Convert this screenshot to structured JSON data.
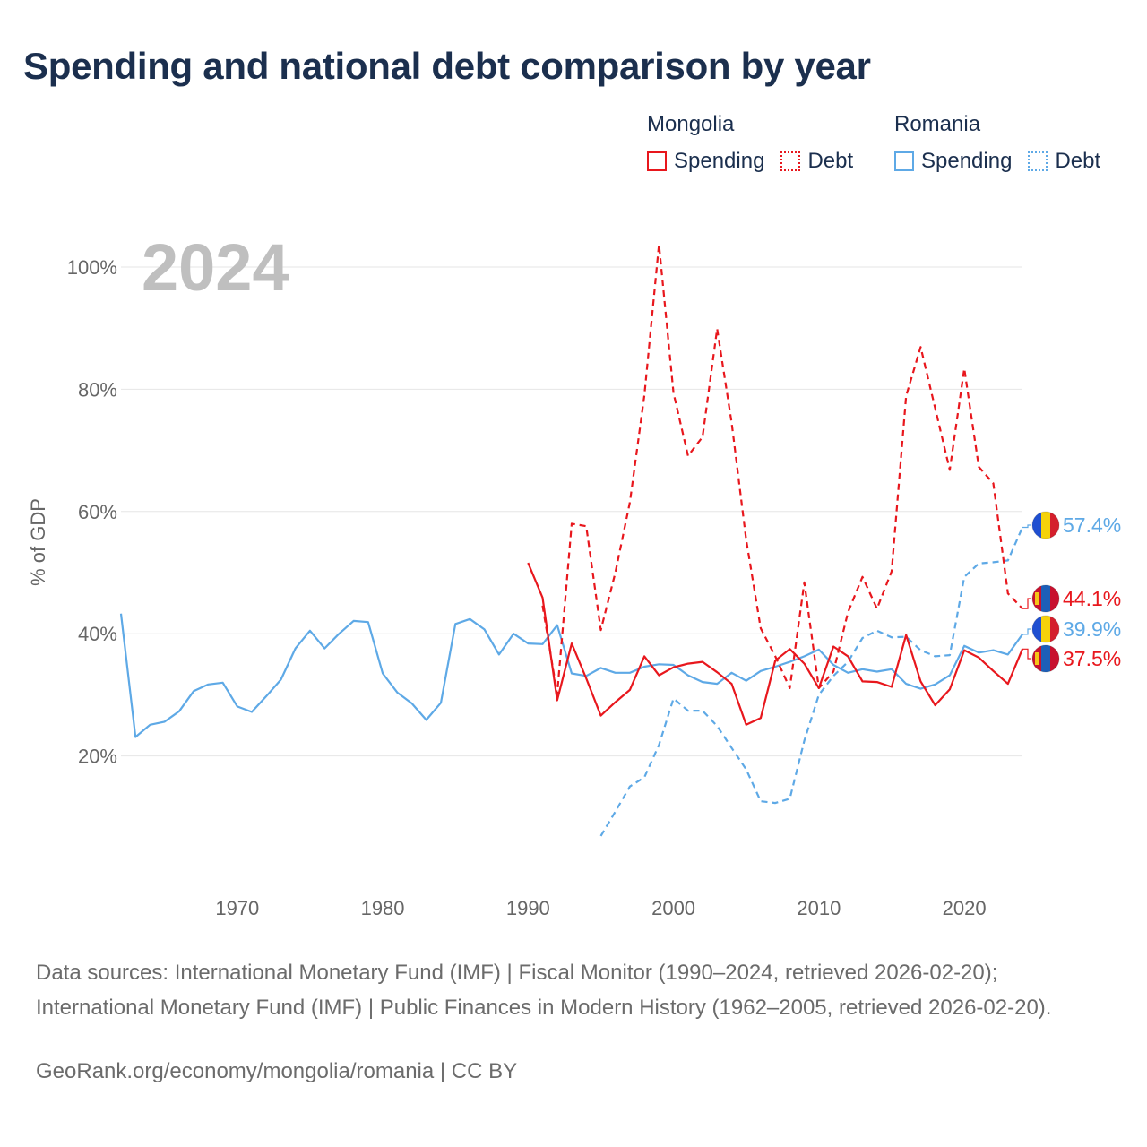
{
  "title": "Spending and national debt comparison by year",
  "legend": {
    "groups": [
      {
        "name": "Mongolia",
        "color": "#e8171d",
        "items": [
          {
            "label": "Spending",
            "style": "solid"
          },
          {
            "label": "Debt",
            "style": "dotted"
          }
        ]
      },
      {
        "name": "Romania",
        "color": "#5ea9e6",
        "items": [
          {
            "label": "Spending",
            "style": "solid"
          },
          {
            "label": "Debt",
            "style": "dotted"
          }
        ]
      }
    ]
  },
  "year_label": "2024",
  "source_text": "Data sources: International Monetary Fund (IMF) | Fiscal Monitor (1990–2024, retrieved 2026-02-20); International Monetary Fund (IMF) | Public Finances in Modern History (1962–2005, retrieved 2026-02-20).",
  "credit_text": "GeoRank.org/economy/mongolia/romania | CC BY",
  "chart_data": {
    "type": "line",
    "title": "Spending and national debt comparison by year",
    "xlabel": "",
    "ylabel": "% of GDP",
    "xlim": [
      1962,
      2024
    ],
    "ylim": [
      0,
      110
    ],
    "x_ticks": [
      1970,
      1980,
      1990,
      2000,
      2010,
      2020
    ],
    "x_tick_labels": [
      "1970",
      "1980",
      "1990",
      "2000",
      "2010",
      "2020"
    ],
    "y_ticks": [
      20,
      40,
      60,
      80,
      100
    ],
    "y_tick_labels": [
      "20%",
      "40%",
      "60%",
      "80%",
      "100%"
    ],
    "grid": true,
    "series": [
      {
        "name": "Romania Spending",
        "country": "Romania",
        "measure": "Spending",
        "color": "#5ea9e6",
        "dash": "solid",
        "end_label": "39.9%",
        "x": [
          1962,
          1963,
          1964,
          1965,
          1966,
          1967,
          1968,
          1969,
          1970,
          1971,
          1972,
          1973,
          1974,
          1975,
          1976,
          1977,
          1978,
          1979,
          1980,
          1981,
          1982,
          1983,
          1984,
          1985,
          1986,
          1987,
          1988,
          1989,
          1990,
          1991,
          1992,
          1993,
          1994,
          1995,
          1996,
          1997,
          1998,
          1999,
          2000,
          2001,
          2002,
          2003,
          2004,
          2005,
          2006,
          2007,
          2008,
          2009,
          2010,
          2011,
          2012,
          2013,
          2014,
          2015,
          2016,
          2017,
          2018,
          2019,
          2020,
          2021,
          2022,
          2023,
          2024
        ],
        "values": [
          43.3,
          23.1,
          25.1,
          25.6,
          27.3,
          30.6,
          31.7,
          32.0,
          28.1,
          27.2,
          29.8,
          32.5,
          37.6,
          40.5,
          37.6,
          40.0,
          42.1,
          41.9,
          33.5,
          30.4,
          28.6,
          25.9,
          28.7,
          41.6,
          42.4,
          40.7,
          36.6,
          40.0,
          38.4,
          38.3,
          41.4,
          33.5,
          33.1,
          34.4,
          33.6,
          33.6,
          34.6,
          35.0,
          34.9,
          33.2,
          32.1,
          31.8,
          33.6,
          32.3,
          33.9,
          34.6,
          35.4,
          36.3,
          37.4,
          34.9,
          33.6,
          34.2,
          33.8,
          34.2,
          31.8,
          31.0,
          31.7,
          33.2,
          38.0,
          36.9,
          37.3,
          36.6,
          39.9
        ]
      },
      {
        "name": "Romania Debt",
        "country": "Romania",
        "measure": "Debt",
        "color": "#5ea9e6",
        "dash": "dashed",
        "end_label": "57.4%",
        "x": [
          1995,
          1996,
          1997,
          1998,
          1999,
          2000,
          2001,
          2002,
          2003,
          2004,
          2005,
          2006,
          2007,
          2008,
          2009,
          2010,
          2011,
          2012,
          2013,
          2014,
          2015,
          2016,
          2017,
          2018,
          2019,
          2020,
          2021,
          2022,
          2023,
          2024
        ],
        "values": [
          6.9,
          10.9,
          15.0,
          16.5,
          21.8,
          29.4,
          27.4,
          27.4,
          24.9,
          21.3,
          17.8,
          12.6,
          12.3,
          13.0,
          22.5,
          30.0,
          33.1,
          35.4,
          39.3,
          40.5,
          39.4,
          39.5,
          37.3,
          36.3,
          36.5,
          49.3,
          51.5,
          51.7,
          52.0,
          57.4
        ]
      },
      {
        "name": "Mongolia Spending",
        "country": "Mongolia",
        "measure": "Spending",
        "color": "#e8171d",
        "dash": "solid",
        "end_label": "37.5%",
        "x": [
          1990,
          1991,
          1992,
          1993,
          1994,
          1995,
          1996,
          1997,
          1998,
          1999,
          2000,
          2001,
          2002,
          2003,
          2004,
          2005,
          2006,
          2007,
          2008,
          2009,
          2010,
          2011,
          2012,
          2013,
          2014,
          2015,
          2016,
          2017,
          2018,
          2019,
          2020,
          2021,
          2022,
          2023,
          2024
        ],
        "values": [
          51.6,
          45.9,
          29.1,
          38.4,
          32.7,
          26.6,
          28.8,
          30.8,
          36.3,
          33.2,
          34.5,
          35.1,
          35.4,
          33.7,
          31.8,
          25.1,
          26.2,
          35.6,
          37.5,
          35.1,
          31.1,
          37.9,
          36.3,
          32.2,
          32.1,
          31.3,
          39.8,
          32.2,
          28.3,
          30.9,
          37.3,
          36.1,
          33.9,
          31.8,
          37.5
        ]
      },
      {
        "name": "Mongolia Debt",
        "country": "Mongolia",
        "measure": "Debt",
        "color": "#e8171d",
        "dash": "dashed",
        "end_label": "44.1%",
        "x": [
          1991,
          1992,
          1993,
          1994,
          1995,
          1996,
          1997,
          1998,
          1999,
          2000,
          2001,
          2002,
          2003,
          2004,
          2005,
          2006,
          2007,
          2008,
          2009,
          2010,
          2011,
          2012,
          2013,
          2014,
          2015,
          2016,
          2017,
          2018,
          2019,
          2020,
          2021,
          2022,
          2023,
          2024
        ],
        "values": [
          44.6,
          30.1,
          58.0,
          57.6,
          40.6,
          50.0,
          61.5,
          79.0,
          103.7,
          79.4,
          69.1,
          72.2,
          89.9,
          74.5,
          55.4,
          40.9,
          36.3,
          31.1,
          48.4,
          31.1,
          33.8,
          43.5,
          49.3,
          44.1,
          50.2,
          78.9,
          86.9,
          76.9,
          66.8,
          83.4,
          67.3,
          64.6,
          46.6,
          44.1
        ]
      }
    ]
  }
}
